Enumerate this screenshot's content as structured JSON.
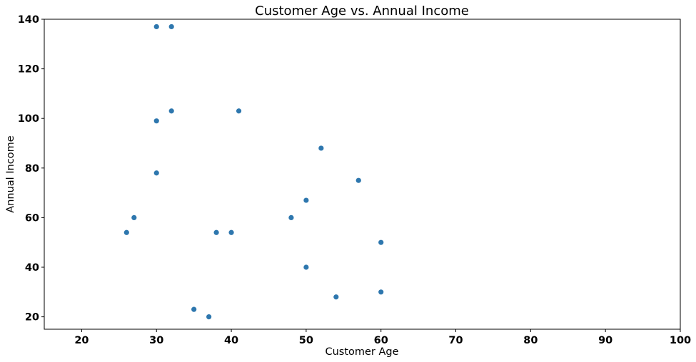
{
  "chart_data": {
    "type": "scatter",
    "title": "Customer Age vs. Annual Income",
    "xlabel": "Customer Age",
    "ylabel": "Annual Income",
    "xlim": [
      15,
      100
    ],
    "ylim": [
      15,
      140
    ],
    "xticks": [
      20,
      30,
      40,
      50,
      60,
      70,
      80,
      90,
      100
    ],
    "yticks": [
      20,
      40,
      60,
      80,
      100,
      120,
      140
    ],
    "grid": false,
    "marker_color": "#2e77ae",
    "points": [
      {
        "x": 30,
        "y": 137
      },
      {
        "x": 32,
        "y": 137
      },
      {
        "x": 32,
        "y": 103
      },
      {
        "x": 41,
        "y": 103
      },
      {
        "x": 30,
        "y": 99
      },
      {
        "x": 52,
        "y": 88
      },
      {
        "x": 30,
        "y": 78
      },
      {
        "x": 57,
        "y": 75
      },
      {
        "x": 50,
        "y": 67
      },
      {
        "x": 27,
        "y": 60
      },
      {
        "x": 48,
        "y": 60
      },
      {
        "x": 26,
        "y": 54
      },
      {
        "x": 38,
        "y": 54
      },
      {
        "x": 40,
        "y": 54
      },
      {
        "x": 60,
        "y": 50
      },
      {
        "x": 50,
        "y": 40
      },
      {
        "x": 60,
        "y": 30
      },
      {
        "x": 54,
        "y": 28
      },
      {
        "x": 35,
        "y": 23
      },
      {
        "x": 37,
        "y": 20
      }
    ]
  }
}
